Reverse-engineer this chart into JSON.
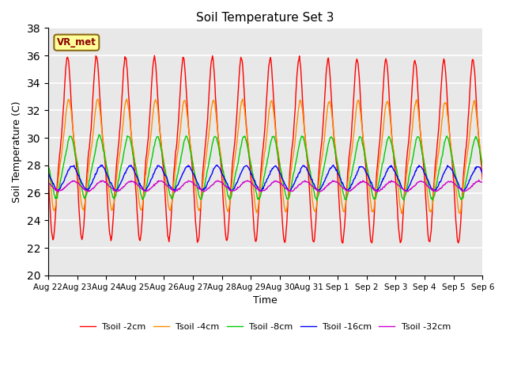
{
  "title": "Soil Temperature Set 3",
  "xlabel": "Time",
  "ylabel": "Soil Temperature (C)",
  "ylim": [
    20,
    38
  ],
  "yticks": [
    20,
    22,
    24,
    26,
    28,
    30,
    32,
    34,
    36,
    38
  ],
  "x_labels": [
    "Aug 22",
    "Aug 23",
    "Aug 24",
    "Aug 25",
    "Aug 26",
    "Aug 27",
    "Aug 28",
    "Aug 29",
    "Aug 30",
    "Aug 31",
    "Sep 1",
    "Sep 2",
    "Sep 3",
    "Sep 4",
    "Sep 5",
    "Sep 6"
  ],
  "annotation_text": "VR_met",
  "colors": {
    "2cm": "#ff0000",
    "4cm": "#ff8c00",
    "8cm": "#00cc00",
    "16cm": "#0000ff",
    "32cm": "#cc00cc"
  },
  "legend_labels": [
    "Tsoil -2cm",
    "Tsoil -4cm",
    "Tsoil -8cm",
    "Tsoil -16cm",
    "Tsoil -32cm"
  ],
  "bg_color": "#e8e8e8",
  "grid_color": "#ffffff",
  "n_days": 15,
  "points_per_day": 48
}
